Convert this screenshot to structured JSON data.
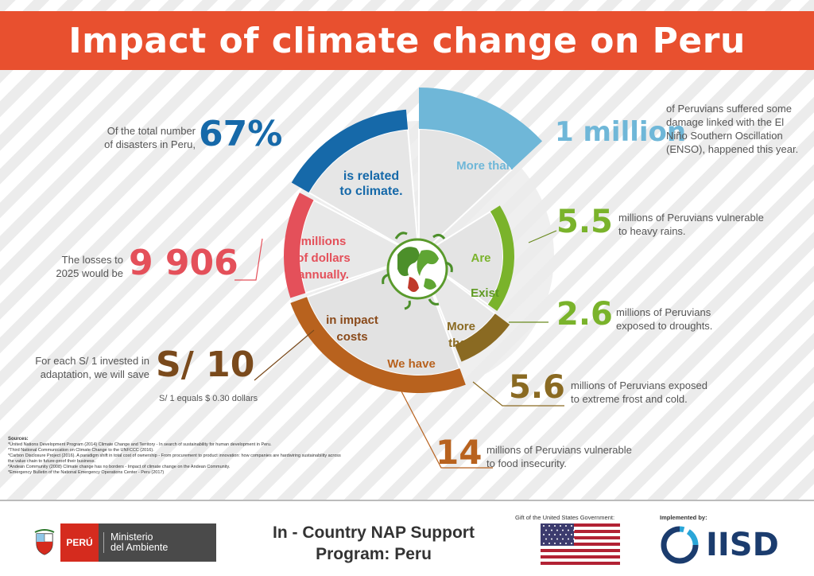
{
  "title": "Impact of climate change on Peru",
  "colors": {
    "header": "#e8502f",
    "blue": "#1669a9",
    "light_blue": "#6fb7d8",
    "green": "#7ab32b",
    "red": "#e4505a",
    "brown": "#b8621e",
    "olive": "#8a6a22"
  },
  "center_icon": "earth-with-leaves-icon",
  "segments": [
    {
      "id": "blue",
      "label": "is related\nto climate."
    },
    {
      "id": "lightblue",
      "label": "More than"
    },
    {
      "id": "green1",
      "label": "Are"
    },
    {
      "id": "green2",
      "label": "Exist"
    },
    {
      "id": "olive",
      "label": "More\nthan"
    },
    {
      "id": "brown",
      "label": "We have"
    },
    {
      "id": "brown2",
      "label": "in impact\ncosts"
    },
    {
      "id": "red",
      "label": "millions\nof dollars\nannually."
    }
  ],
  "stats": {
    "disasters": {
      "pre": "Of the total number\nof disasters in Peru,",
      "value": "67%"
    },
    "enso": {
      "value": "1 million",
      "text": "of Peruvians suffered some\ndamage linked with the El\nNiño Southern Oscillation\n(ENSO), happened this year."
    },
    "rains": {
      "value": "5.5",
      "text": "millions of Peruvians vulnerable\nto heavy rains."
    },
    "droughts": {
      "value": "2.6",
      "text": "millions of Peruvians\nexposed to droughts."
    },
    "frost": {
      "value": "5.6",
      "text": "millions of Peruvians exposed\nto extreme frost and cold."
    },
    "food": {
      "value": "14",
      "text": "millions of Peruvians vulnerable\nto food insecurity."
    },
    "losses": {
      "pre": "The losses to\n2025 would be",
      "value": "9 906"
    },
    "savings": {
      "pre": "For each S/ 1 invested in\nadaptation, we will save",
      "value": "S/ 10",
      "note": "S/ 1 equals $ 0.30 dollars"
    }
  },
  "sources": {
    "heading": "Sources:",
    "items": [
      "*United Nations Development Program (2014) Climate Change and Territory - In search of sustainability for human development in Peru.",
      "*Third National Communication on Climate Change to the UNFCCC (2016).",
      "*Carbon Disclosure Project (2016). A paradigm shift in total cost of ownership - From procurement to product innovation: how companies are hardwiring sustainability across the value chain to future-proof their business.",
      "*Andean Community (2008) Climate change has no borders - Impact of climate change on the Andean Community.",
      "*Emergency Bulletin of the National Emergency Operations Center - Peru (2017)"
    ]
  },
  "footer": {
    "peru_label": "PERÚ",
    "ministry_line1": "Ministerio",
    "ministry_line2": "del Ambiente",
    "program_line1": "In - Country NAP Support",
    "program_line2": "Program: Peru",
    "gift_label": "Gift of the United States Government:",
    "implemented_label": "Implemented by:",
    "iisd_label": "IISD"
  }
}
